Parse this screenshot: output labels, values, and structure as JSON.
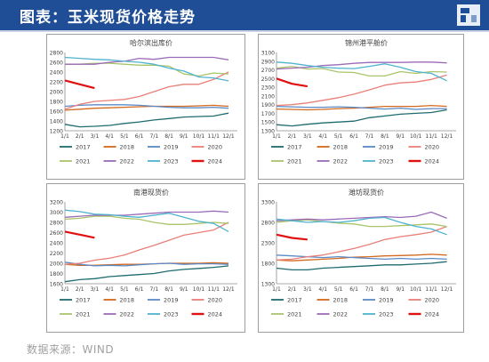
{
  "header": {
    "title": "图表：玉米现货价格走势"
  },
  "source": {
    "text": "数据来源：WIND"
  },
  "colors": {
    "header_bg": "#1f4e96",
    "2017": "#1f6b6f",
    "2018": "#d2691e",
    "2019": "#5b8ac6",
    "2020": "#e98078",
    "2021": "#a9c56a",
    "2022": "#9b6bb8",
    "2023": "#4fb3cf",
    "2024": "#e01010"
  },
  "x_ticks": [
    "1/1",
    "2/1",
    "3/1",
    "4/1",
    "5/1",
    "6/1",
    "7/1",
    "8/1",
    "9/1",
    "10/1",
    "11/1",
    "12/1"
  ],
  "legend_years": [
    "2017",
    "2018",
    "2019",
    "2020",
    "2021",
    "2022",
    "2023",
    "2024"
  ],
  "chart_data": [
    {
      "type": "line",
      "title": "哈尔滨出库价",
      "ylim": [
        1200,
        2800
      ],
      "yticks": [
        1200,
        1400,
        1600,
        1800,
        2000,
        2200,
        2400,
        2600,
        2800
      ],
      "series": [
        {
          "name": "2017",
          "values": [
            1330,
            1280,
            1290,
            1310,
            1350,
            1380,
            1420,
            1450,
            1480,
            1490,
            1500,
            1560
          ]
        },
        {
          "name": "2018",
          "values": [
            1620,
            1640,
            1660,
            1670,
            1680,
            1690,
            1700,
            1700,
            1700,
            1710,
            1720,
            1700
          ]
        },
        {
          "name": "2019",
          "values": [
            1700,
            1720,
            1730,
            1730,
            1730,
            1720,
            1700,
            1680,
            1670,
            1670,
            1680,
            1660
          ]
        },
        {
          "name": "2020",
          "values": [
            1640,
            1740,
            1800,
            1820,
            1840,
            1900,
            2000,
            2100,
            2150,
            2150,
            2250,
            2400
          ]
        },
        {
          "name": "2021",
          "values": [
            2560,
            2560,
            2580,
            2580,
            2560,
            2540,
            2540,
            2520,
            2360,
            2320,
            2380,
            2360
          ]
        },
        {
          "name": "2022",
          "values": [
            2560,
            2560,
            2560,
            2600,
            2620,
            2680,
            2660,
            2700,
            2700,
            2700,
            2700,
            2650
          ]
        },
        {
          "name": "2023",
          "values": [
            2700,
            2680,
            2660,
            2650,
            2620,
            2600,
            2560,
            2480,
            2420,
            2300,
            2280,
            2220
          ]
        },
        {
          "name": "2024",
          "values": [
            2230,
            2150,
            2070,
            null,
            null,
            null,
            null,
            null,
            null,
            null,
            null,
            null
          ]
        }
      ]
    },
    {
      "type": "line",
      "title": "锦州港平舱价",
      "ylim": [
        1300,
        3100
      ],
      "yticks": [
        1300,
        1500,
        1700,
        1900,
        2100,
        2300,
        2500,
        2700,
        2900,
        3100
      ],
      "series": [
        {
          "name": "2017",
          "values": [
            1440,
            1410,
            1450,
            1480,
            1500,
            1520,
            1600,
            1640,
            1680,
            1700,
            1720,
            1780
          ]
        },
        {
          "name": "2018",
          "values": [
            1800,
            1790,
            1780,
            1790,
            1810,
            1820,
            1840,
            1860,
            1860,
            1860,
            1880,
            1860
          ]
        },
        {
          "name": "2019",
          "values": [
            1860,
            1850,
            1840,
            1840,
            1850,
            1840,
            1820,
            1800,
            1820,
            1790,
            1810,
            1810
          ]
        },
        {
          "name": "2020",
          "values": [
            1880,
            1900,
            1940,
            2000,
            2060,
            2140,
            2240,
            2350,
            2400,
            2420,
            2480,
            2580
          ]
        },
        {
          "name": "2021",
          "values": [
            2740,
            2780,
            2720,
            2730,
            2650,
            2640,
            2560,
            2560,
            2660,
            2620,
            2660,
            2650
          ]
        },
        {
          "name": "2022",
          "values": [
            2720,
            2740,
            2760,
            2800,
            2820,
            2850,
            2870,
            2870,
            2870,
            2880,
            2880,
            2860
          ]
        },
        {
          "name": "2023",
          "values": [
            2880,
            2850,
            2800,
            2760,
            2740,
            2730,
            2780,
            2840,
            2760,
            2660,
            2620,
            2450
          ]
        },
        {
          "name": "2024",
          "values": [
            2500,
            2380,
            2320,
            null,
            null,
            null,
            null,
            null,
            null,
            null,
            null,
            null
          ]
        }
      ]
    },
    {
      "type": "line",
      "title": "南港现货价",
      "ylim": [
        1600,
        3200
      ],
      "yticks": [
        1600,
        1800,
        2000,
        2200,
        2400,
        2600,
        2800,
        3000,
        3200
      ],
      "series": [
        {
          "name": "2017",
          "values": [
            1640,
            1680,
            1700,
            1740,
            1760,
            1780,
            1800,
            1850,
            1880,
            1900,
            1920,
            1950
          ]
        },
        {
          "name": "2018",
          "values": [
            1980,
            1960,
            1960,
            1970,
            1980,
            1980,
            1990,
            2000,
            2000,
            2000,
            2010,
            2000
          ]
        },
        {
          "name": "2019",
          "values": [
            2020,
            1980,
            1950,
            1960,
            1950,
            1970,
            1990,
            2000,
            1980,
            1990,
            1990,
            1980
          ]
        },
        {
          "name": "2020",
          "values": [
            1980,
            2000,
            2060,
            2100,
            2160,
            2260,
            2350,
            2450,
            2550,
            2600,
            2650,
            2800
          ]
        },
        {
          "name": "2021",
          "values": [
            2860,
            2880,
            2920,
            2920,
            2880,
            2860,
            2800,
            2760,
            2760,
            2780,
            2800,
            2780
          ]
        },
        {
          "name": "2022",
          "values": [
            2900,
            2920,
            2940,
            2940,
            2940,
            2960,
            2980,
            3000,
            3000,
            3000,
            3020,
            3000
          ]
        },
        {
          "name": "2023",
          "values": [
            3040,
            3010,
            2960,
            2950,
            2920,
            2900,
            2940,
            2980,
            2900,
            2820,
            2780,
            2620
          ]
        },
        {
          "name": "2024",
          "values": [
            2620,
            2560,
            2500,
            null,
            null,
            null,
            null,
            null,
            null,
            null,
            null,
            null
          ]
        }
      ]
    },
    {
      "type": "line",
      "title": "潍坊现货价",
      "ylim": [
        1300,
        3300
      ],
      "yticks": [
        1300,
        1800,
        2300,
        2800,
        3300
      ],
      "series": [
        {
          "name": "2017",
          "values": [
            1680,
            1640,
            1640,
            1680,
            1700,
            1720,
            1740,
            1760,
            1760,
            1780,
            1800,
            1840
          ]
        },
        {
          "name": "2018",
          "values": [
            1880,
            1860,
            1880,
            1900,
            1920,
            1950,
            1960,
            1980,
            1990,
            2000,
            2020,
            2000
          ]
        },
        {
          "name": "2019",
          "values": [
            2000,
            1980,
            1960,
            1940,
            1960,
            1940,
            1920,
            1900,
            1920,
            1900,
            1920,
            1900
          ]
        },
        {
          "name": "2020",
          "values": [
            1880,
            1900,
            1960,
            2000,
            2080,
            2160,
            2260,
            2380,
            2450,
            2500,
            2560,
            2700
          ]
        },
        {
          "name": "2021",
          "values": [
            2800,
            2840,
            2860,
            2820,
            2780,
            2760,
            2700,
            2700,
            2720,
            2740,
            2760,
            2700
          ]
        },
        {
          "name": "2022",
          "values": [
            2840,
            2860,
            2880,
            2860,
            2880,
            2900,
            2920,
            2940,
            2920,
            2950,
            3050,
            2900
          ]
        },
        {
          "name": "2023",
          "values": [
            2880,
            2840,
            2800,
            2820,
            2800,
            2840,
            2900,
            2920,
            2800,
            2700,
            2640,
            2500
          ]
        },
        {
          "name": "2024",
          "values": [
            2500,
            2420,
            2380,
            null,
            null,
            null,
            null,
            null,
            null,
            null,
            null,
            null
          ]
        }
      ]
    }
  ]
}
